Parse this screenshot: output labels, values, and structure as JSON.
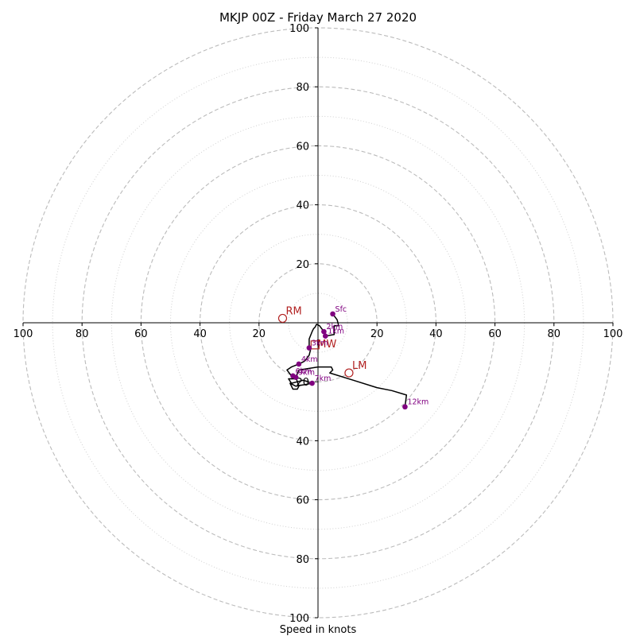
{
  "chart_data": {
    "type": "hodograph",
    "title": "MKJP 00Z - Friday March 27 2020",
    "xlabel": "Speed in knots",
    "range": [
      -100,
      100
    ],
    "ring_major": [
      20,
      40,
      60,
      80,
      100
    ],
    "ring_minor": [
      10,
      30,
      50,
      70,
      90
    ],
    "axis_ticks": [
      20,
      40,
      60,
      80,
      100
    ],
    "trace": [
      {
        "u": 5,
        "v": 3
      },
      {
        "u": 6.5,
        "v": 1
      },
      {
        "u": 7,
        "v": -1
      },
      {
        "u": 5.5,
        "v": -1
      },
      {
        "u": 5.5,
        "v": -4
      },
      {
        "u": 2.5,
        "v": -4.5
      },
      {
        "u": 2,
        "v": -3
      },
      {
        "u": 0.5,
        "v": -1
      },
      {
        "u": -0.5,
        "v": -0.5
      },
      {
        "u": -1,
        "v": -1.5
      },
      {
        "u": -1.5,
        "v": -2
      },
      {
        "u": -2,
        "v": -3
      },
      {
        "u": -3,
        "v": -5.5
      },
      {
        "u": -3,
        "v": -8
      },
      {
        "u": -2.5,
        "v": -9
      },
      {
        "u": -3,
        "v": -11
      },
      {
        "u": -4.5,
        "v": -13
      },
      {
        "u": -6.5,
        "v": -14
      },
      {
        "u": -9,
        "v": -15
      },
      {
        "u": -10.5,
        "v": -16
      },
      {
        "u": -9,
        "v": -18
      },
      {
        "u": -8,
        "v": -19
      },
      {
        "u": -10,
        "v": -19
      },
      {
        "u": -9,
        "v": -20.5
      },
      {
        "u": -7,
        "v": -20
      },
      {
        "u": -5,
        "v": -19.5
      },
      {
        "u": -2,
        "v": -20.5
      },
      {
        "u": -7.5,
        "v": -21.5
      },
      {
        "u": -9.5,
        "v": -20.5
      },
      {
        "u": -8.5,
        "v": -22.5
      },
      {
        "u": -7,
        "v": -22.5
      },
      {
        "u": -6.5,
        "v": -21.5
      },
      {
        "u": -7.5,
        "v": -18.5
      },
      {
        "u": -6.5,
        "v": -16
      },
      {
        "u": 0,
        "v": -15
      },
      {
        "u": 4.5,
        "v": -15
      },
      {
        "u": 5,
        "v": -16
      },
      {
        "u": 4,
        "v": -17
      },
      {
        "u": 12,
        "v": -19.5
      },
      {
        "u": 20,
        "v": -22
      },
      {
        "u": 25,
        "v": -23
      },
      {
        "u": 30,
        "v": -24.5
      },
      {
        "u": 29.5,
        "v": -28.5
      }
    ],
    "height_markers": [
      {
        "label": "Sfc",
        "u": 5,
        "v": 3
      },
      {
        "label": "2km",
        "u": 2,
        "v": -3
      },
      {
        "label": "1km",
        "u": 2.5,
        "v": -4.5
      },
      {
        "label": "3km",
        "u": -3,
        "v": -8.5
      },
      {
        "label": "4km",
        "u": -6.5,
        "v": -14
      },
      {
        "label": "6km",
        "u": -8.5,
        "v": -18
      },
      {
        "label": "9km",
        "u": -7.5,
        "v": -18.5
      },
      {
        "label": "7km",
        "u": -2,
        "v": -20.5
      },
      {
        "label": "12km",
        "u": 29.5,
        "v": -28.5
      }
    ],
    "storm_motions": [
      {
        "label": "RM",
        "u": -12,
        "v": 1.5
      },
      {
        "label": "LM",
        "u": 10.5,
        "v": -17
      },
      {
        "label": "MW",
        "u": -1,
        "v": -7.5
      }
    ],
    "colors": {
      "trace": "#000000",
      "markers": "#800080",
      "storm_motion": "#b22222",
      "rings": "#bbbbbb"
    },
    "grid": true
  }
}
